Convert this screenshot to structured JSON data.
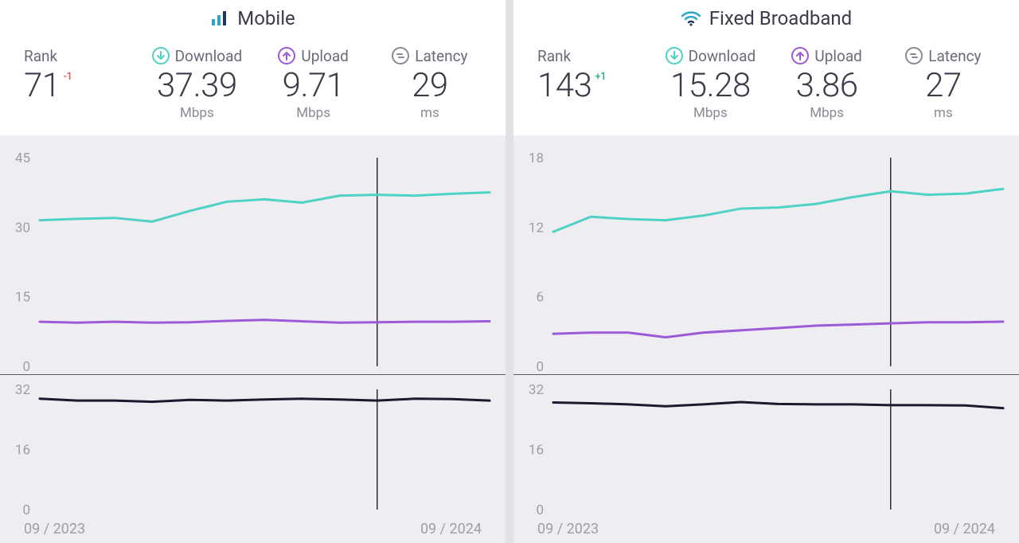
{
  "colors": {
    "download": "#4fd1c5",
    "upload": "#9b5bd8",
    "latency": "#1a1a2e",
    "icon_gray": "#8a8a95",
    "text_dark": "#3a3a48",
    "text_muted": "#8a8a95",
    "tick": "#9e9ea8",
    "chart_bg": "#eeedf2",
    "divider": "#e1e1e6",
    "marker_line": "#2d2d3a",
    "delta_neg": "#d35454",
    "delta_pos": "#2fae82"
  },
  "panels": [
    {
      "key": "mobile",
      "title": "Mobile",
      "icon": "signal-bars",
      "rank": {
        "label": "Rank",
        "value": "71",
        "delta": "-1",
        "delta_sign": "neg"
      },
      "download": {
        "label": "Download",
        "value": "37.39",
        "unit": "Mbps"
      },
      "upload": {
        "label": "Upload",
        "value": "9.71",
        "unit": "Mbps"
      },
      "latency": {
        "label": "Latency",
        "value": "29",
        "unit": "ms"
      },
      "chart_main": {
        "ylim": [
          0,
          45
        ],
        "yticks": [
          0,
          15,
          30,
          45
        ],
        "marker_x_index": 9,
        "series": [
          {
            "name": "download",
            "color": "#4fd1c5",
            "width": 3,
            "y": [
              31.5,
              31.8,
              32.0,
              31.2,
              33.5,
              35.5,
              36.0,
              35.3,
              36.8,
              37.0,
              36.8,
              37.2,
              37.5
            ]
          },
          {
            "name": "upload",
            "color": "#9b5bd8",
            "width": 3,
            "y": [
              9.6,
              9.4,
              9.6,
              9.4,
              9.5,
              9.8,
              10.0,
              9.7,
              9.4,
              9.5,
              9.6,
              9.6,
              9.7
            ]
          }
        ]
      },
      "chart_sub": {
        "ylim": [
          0,
          32
        ],
        "yticks": [
          0,
          16,
          32
        ],
        "marker_x_index": 9,
        "series": [
          {
            "name": "latency",
            "color": "#1a1a2e",
            "width": 3,
            "y": [
              29.5,
              29.0,
              29.0,
              28.7,
              29.2,
              29.0,
              29.3,
              29.5,
              29.3,
              29.0,
              29.5,
              29.4,
              29.0
            ]
          }
        ]
      },
      "date_start": "09 / 2023",
      "date_end": "09 / 2024"
    },
    {
      "key": "fixed",
      "title": "Fixed Broadband",
      "icon": "wifi",
      "rank": {
        "label": "Rank",
        "value": "143",
        "delta": "+1",
        "delta_sign": "pos"
      },
      "download": {
        "label": "Download",
        "value": "15.28",
        "unit": "Mbps"
      },
      "upload": {
        "label": "Upload",
        "value": "3.86",
        "unit": "Mbps"
      },
      "latency": {
        "label": "Latency",
        "value": "27",
        "unit": "ms"
      },
      "chart_main": {
        "ylim": [
          0,
          18
        ],
        "yticks": [
          0,
          6,
          12,
          18
        ],
        "marker_x_index": 9,
        "series": [
          {
            "name": "download",
            "color": "#4fd1c5",
            "width": 3,
            "y": [
              11.6,
              12.9,
              12.7,
              12.6,
              13.0,
              13.6,
              13.7,
              14.0,
              14.6,
              15.1,
              14.8,
              14.9,
              15.3
            ]
          },
          {
            "name": "upload",
            "color": "#9b5bd8",
            "width": 3,
            "y": [
              2.8,
              2.9,
              2.9,
              2.5,
              2.9,
              3.1,
              3.3,
              3.5,
              3.6,
              3.7,
              3.8,
              3.8,
              3.85
            ]
          }
        ]
      },
      "chart_sub": {
        "ylim": [
          0,
          32
        ],
        "yticks": [
          0,
          16,
          32
        ],
        "marker_x_index": 9,
        "series": [
          {
            "name": "latency",
            "color": "#1a1a2e",
            "width": 3,
            "y": [
              28.5,
              28.3,
              28.0,
              27.5,
              28.0,
              28.6,
              28.1,
              28.0,
              28.0,
              27.8,
              27.8,
              27.7,
              27.0
            ]
          }
        ]
      },
      "date_start": "09 / 2023",
      "date_end": "09 / 2024"
    }
  ]
}
